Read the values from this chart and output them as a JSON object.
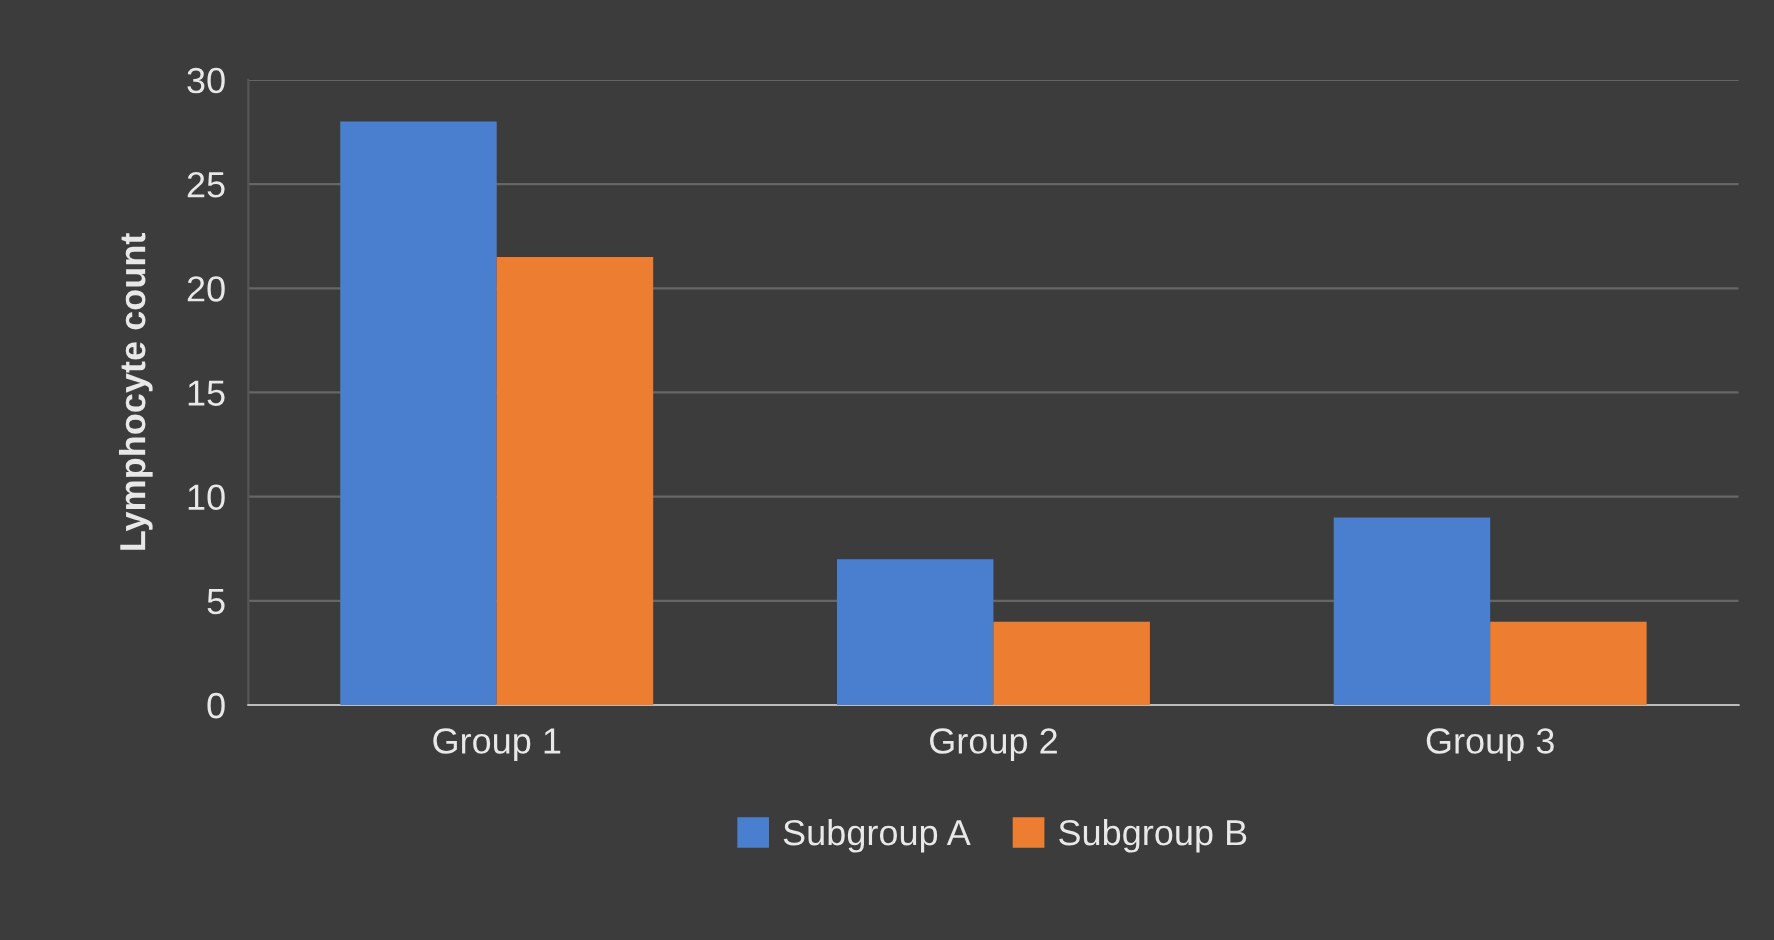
{
  "chart_data": {
    "type": "bar",
    "ylabel": "Lymphocyte count",
    "categories": [
      "Group 1",
      "Group 2",
      "Group 3"
    ],
    "series": [
      {
        "name": "Subgroup A",
        "color": "#4a7fcf",
        "values": [
          28,
          7,
          9
        ]
      },
      {
        "name": "Subgroup B",
        "color": "#ed7d31",
        "values": [
          21.5,
          4,
          4
        ]
      }
    ],
    "ylim": [
      0,
      30
    ],
    "yticks": [
      0,
      5,
      10,
      15,
      20,
      25,
      30
    ],
    "grid": "y",
    "legend": "bottom"
  }
}
